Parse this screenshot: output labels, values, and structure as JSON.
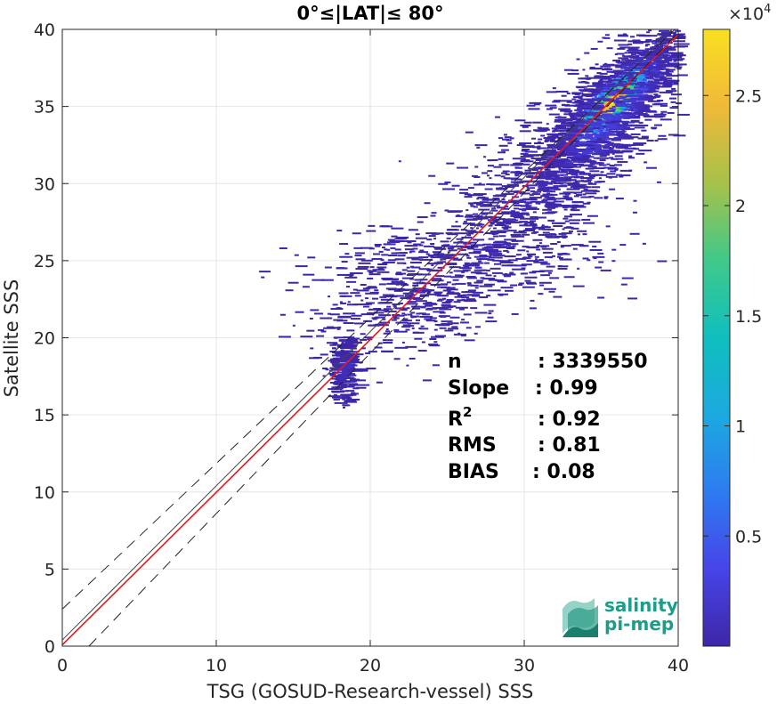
{
  "chart_data": {
    "type": "heatmap",
    "title": "0°≤|LAT|≤ 80°",
    "xlabel": "TSG (GOSUD-Research-vessel) SSS",
    "ylabel": "Satellite SSS",
    "xlim": [
      0,
      40
    ],
    "ylim": [
      0,
      40
    ],
    "x_ticks": [
      "0",
      "10",
      "20",
      "30",
      "40"
    ],
    "y_ticks": [
      "0",
      "5",
      "10",
      "15",
      "20",
      "25",
      "30",
      "35",
      "40"
    ],
    "grid": true,
    "colorbar": {
      "range": [
        0,
        28000
      ],
      "exponent_label": "×10",
      "exponent_power": "4",
      "ticks": [
        {
          "label": "0.5",
          "value": 5000
        },
        {
          "label": "1",
          "value": 10000
        },
        {
          "label": "1.5",
          "value": 15000
        },
        {
          "label": "2",
          "value": 20000
        },
        {
          "label": "2.5",
          "value": 25000
        }
      ],
      "colormap": [
        "#3e26a8",
        "#4744e8",
        "#2d7cf1",
        "#1ca9df",
        "#0fbfbf",
        "#3fc98a",
        "#a6c14a",
        "#f0b93a",
        "#f9e021"
      ]
    },
    "lines": [
      {
        "kind": "regression",
        "color": "#e21a1a",
        "style": "solid",
        "slope": 0.99,
        "intercept": 0.08
      },
      {
        "kind": "identity",
        "color": "#444444",
        "style": "solid",
        "slope": 1.0,
        "intercept": 0.4
      },
      {
        "kind": "upper-bound",
        "color": "#222222",
        "style": "dashed",
        "slope": 0.945,
        "intercept": 2.4
      },
      {
        "kind": "lower-bound",
        "color": "#222222",
        "style": "dashed",
        "slope": 1.04,
        "intercept": -1.8
      }
    ],
    "density_clusters": [
      {
        "x": 35.5,
        "y": 35.3,
        "sx": 2.2,
        "sy": 2.3,
        "rho": 0.85,
        "n": 1400,
        "peak": 28000
      },
      {
        "x": 35.0,
        "y": 34.0,
        "sx": 3.2,
        "sy": 3.8,
        "rho": 0.8,
        "n": 900,
        "peak": 3000
      },
      {
        "x": 30.0,
        "y": 29.5,
        "sx": 3.0,
        "sy": 2.5,
        "rho": 0.5,
        "n": 500,
        "peak": 800
      },
      {
        "x": 26.0,
        "y": 25.0,
        "sx": 4.5,
        "sy": 1.6,
        "rho": 0.2,
        "n": 450,
        "peak": 400
      },
      {
        "x": 22.0,
        "y": 22.0,
        "sx": 3.0,
        "sy": 1.6,
        "rho": 0.3,
        "n": 300,
        "peak": 300
      },
      {
        "x": 18.1,
        "y": 18.0,
        "sx": 0.45,
        "sy": 1.1,
        "rho": 0.0,
        "n": 250,
        "peak": 1200
      }
    ],
    "stats": [
      {
        "name": "n",
        "value": ": 3339550"
      },
      {
        "name": "Slope",
        "value": ": 0.99"
      },
      {
        "name": "R",
        "sup": "2",
        "value": ": 0.92"
      },
      {
        "name": "RMS",
        "value": ": 0.81"
      },
      {
        "name": "BIAS",
        "value": ": 0.08"
      }
    ]
  },
  "logo": {
    "line1": "salinity",
    "line2": "pi-mep",
    "color": "#1a9e8a"
  }
}
